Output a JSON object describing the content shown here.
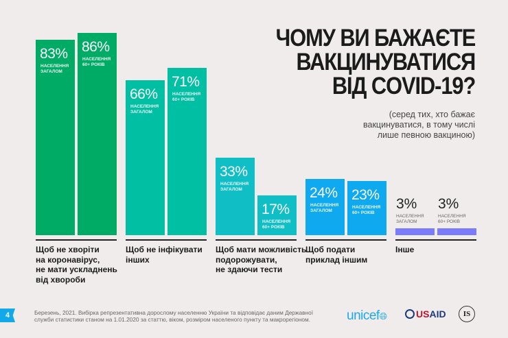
{
  "title": [
    "ЧОМУ ВИ БАЖАЄТЕ",
    "ВАКЦИНУВАТИСЯ",
    "ВІД COVID-19?"
  ],
  "subtitle": [
    "(серед тих, хто бажає",
    "вакцинуватися, в тому числі",
    "лише певною вакциною)"
  ],
  "chart_data": {
    "type": "bar",
    "title": "ЧОМУ ВИ БАЖАЄТЕ ВАКЦИНУВАТИСЯ ВІД COVID-19?",
    "unit": "%",
    "ylim": [
      0,
      100
    ],
    "grid": false,
    "series_labels": [
      "НАСЕЛЕННЯ ЗАГАЛОМ",
      "НАСЕЛЕННЯ 60+ РОКІВ"
    ],
    "categories": [
      "Щоб не хворіти\nна коронавірус,\nне мати ускладнень\nвід хвороби",
      "Щоб не інфікувати\nінших",
      "Щоб мати можливість\nподорожувати,\nне здаючи тести",
      "Щоб подати\nприклад іншим",
      "Інше"
    ],
    "groups": [
      {
        "values": [
          83,
          86
        ],
        "labels": [
          "83%",
          "86%"
        ],
        "color": "#00ab66"
      },
      {
        "values": [
          66,
          71
        ],
        "labels": [
          "66%",
          "71%"
        ],
        "color": "#00bfa2"
      },
      {
        "values": [
          33,
          17
        ],
        "labels": [
          "33%",
          "17%"
        ],
        "color": "#10bec6"
      },
      {
        "values": [
          24,
          23
        ],
        "labels": [
          "24%",
          "23%"
        ],
        "color": "#0fa9ef"
      },
      {
        "values": [
          3,
          3
        ],
        "labels": [
          "3%",
          "3%"
        ],
        "color": "#7b7cfb"
      }
    ]
  },
  "footer": {
    "page_number": "4",
    "note": "Березень, 2021. Вибірка репрезентативна дорослому населенню України та відповідає даним Державної служби статистики станом на 1.01.2020 за статтю, віком, розміром населеного пункту та макрорегіоном.",
    "logos": {
      "unicef": "unicef",
      "usaid_a": "US",
      "usaid_b": "AID",
      "is": "IS"
    }
  }
}
